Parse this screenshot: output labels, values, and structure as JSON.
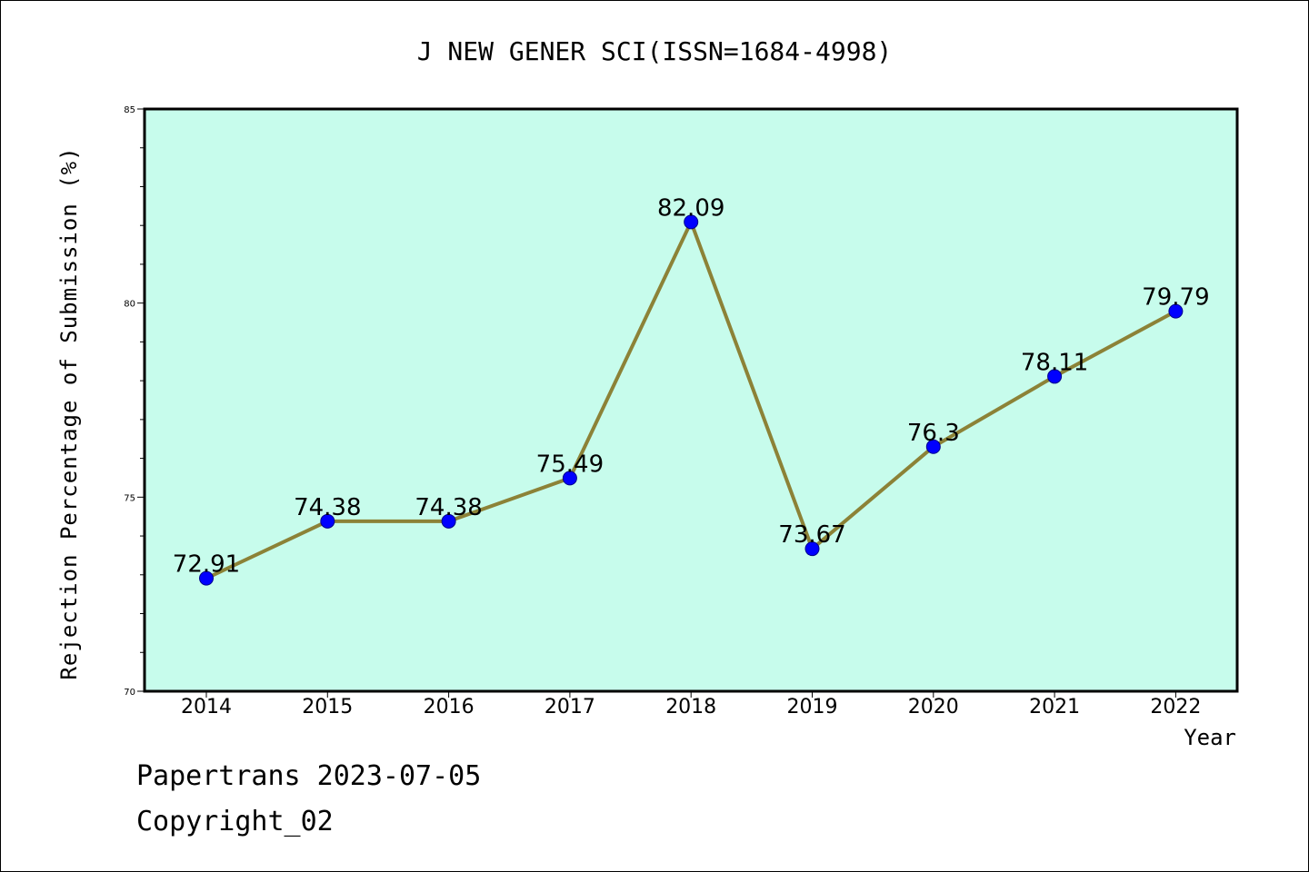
{
  "chart_data": {
    "type": "line",
    "title": "J NEW GENER SCI(ISSN=1684-4998)",
    "xlabel": "Year",
    "ylabel": "Rejection Percentage of Submission (%)",
    "categories": [
      "2014",
      "2015",
      "2016",
      "2017",
      "2018",
      "2019",
      "2020",
      "2021",
      "2022"
    ],
    "values": [
      72.91,
      74.38,
      74.38,
      75.49,
      82.09,
      73.67,
      76.3,
      78.11,
      79.79
    ],
    "value_labels": [
      "72.91",
      "74.38",
      "74.38",
      "75.49",
      "82.09",
      "73.67",
      "76.3",
      "78.11",
      "79.79"
    ],
    "ylim": [
      70,
      85
    ],
    "yticks": [
      "70",
      "75",
      "80",
      "85"
    ],
    "grid": false,
    "colors": {
      "plot_background": "#c7fcec",
      "line": "#8c8237",
      "marker": "#0000ff"
    }
  },
  "footer": {
    "line1": "Papertrans 2023-07-05",
    "line2": "Copyright_02"
  }
}
